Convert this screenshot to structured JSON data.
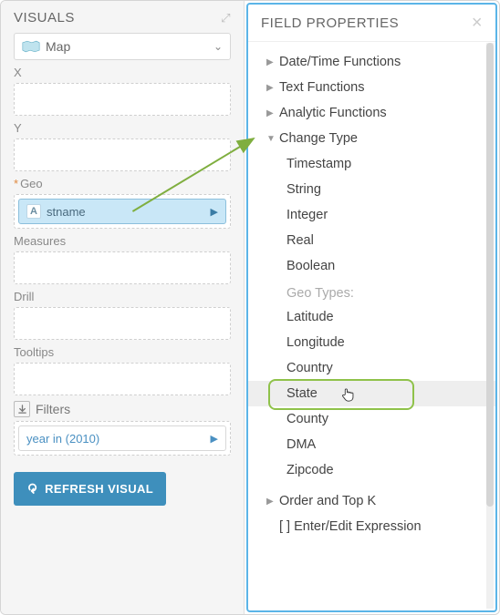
{
  "leftPanel": {
    "title": "VISUALS",
    "visualType": "Map",
    "shelves": {
      "x": {
        "label": "X"
      },
      "y": {
        "label": "Y"
      },
      "geo": {
        "label": "Geo",
        "required": true,
        "field": "stname",
        "typeBadge": "A"
      },
      "measures": {
        "label": "Measures"
      },
      "drill": {
        "label": "Drill"
      },
      "tooltips": {
        "label": "Tooltips"
      }
    },
    "filters": {
      "label": "Filters",
      "pill": "year in (2010)"
    },
    "refreshLabel": "REFRESH VISUAL"
  },
  "rightPanel": {
    "title": "FIELD PROPERTIES",
    "sections": {
      "dateTime": "Date/Time Functions",
      "textFns": "Text Functions",
      "analytic": "Analytic Functions",
      "changeType": {
        "label": "Change Type",
        "basicTypes": [
          "Timestamp",
          "String",
          "Integer",
          "Real",
          "Boolean"
        ],
        "geoHeader": "Geo Types:",
        "geoTypes": [
          "Latitude",
          "Longitude",
          "Country",
          "State",
          "County",
          "DMA",
          "Zipcode"
        ],
        "selectedGeoType": "State"
      },
      "orderTopK": "Order and Top K",
      "expression": "[ ] Enter/Edit Expression"
    }
  },
  "annotations": {
    "highlightColor": "#8fc24a",
    "arrowColor": "#7fae3f"
  }
}
